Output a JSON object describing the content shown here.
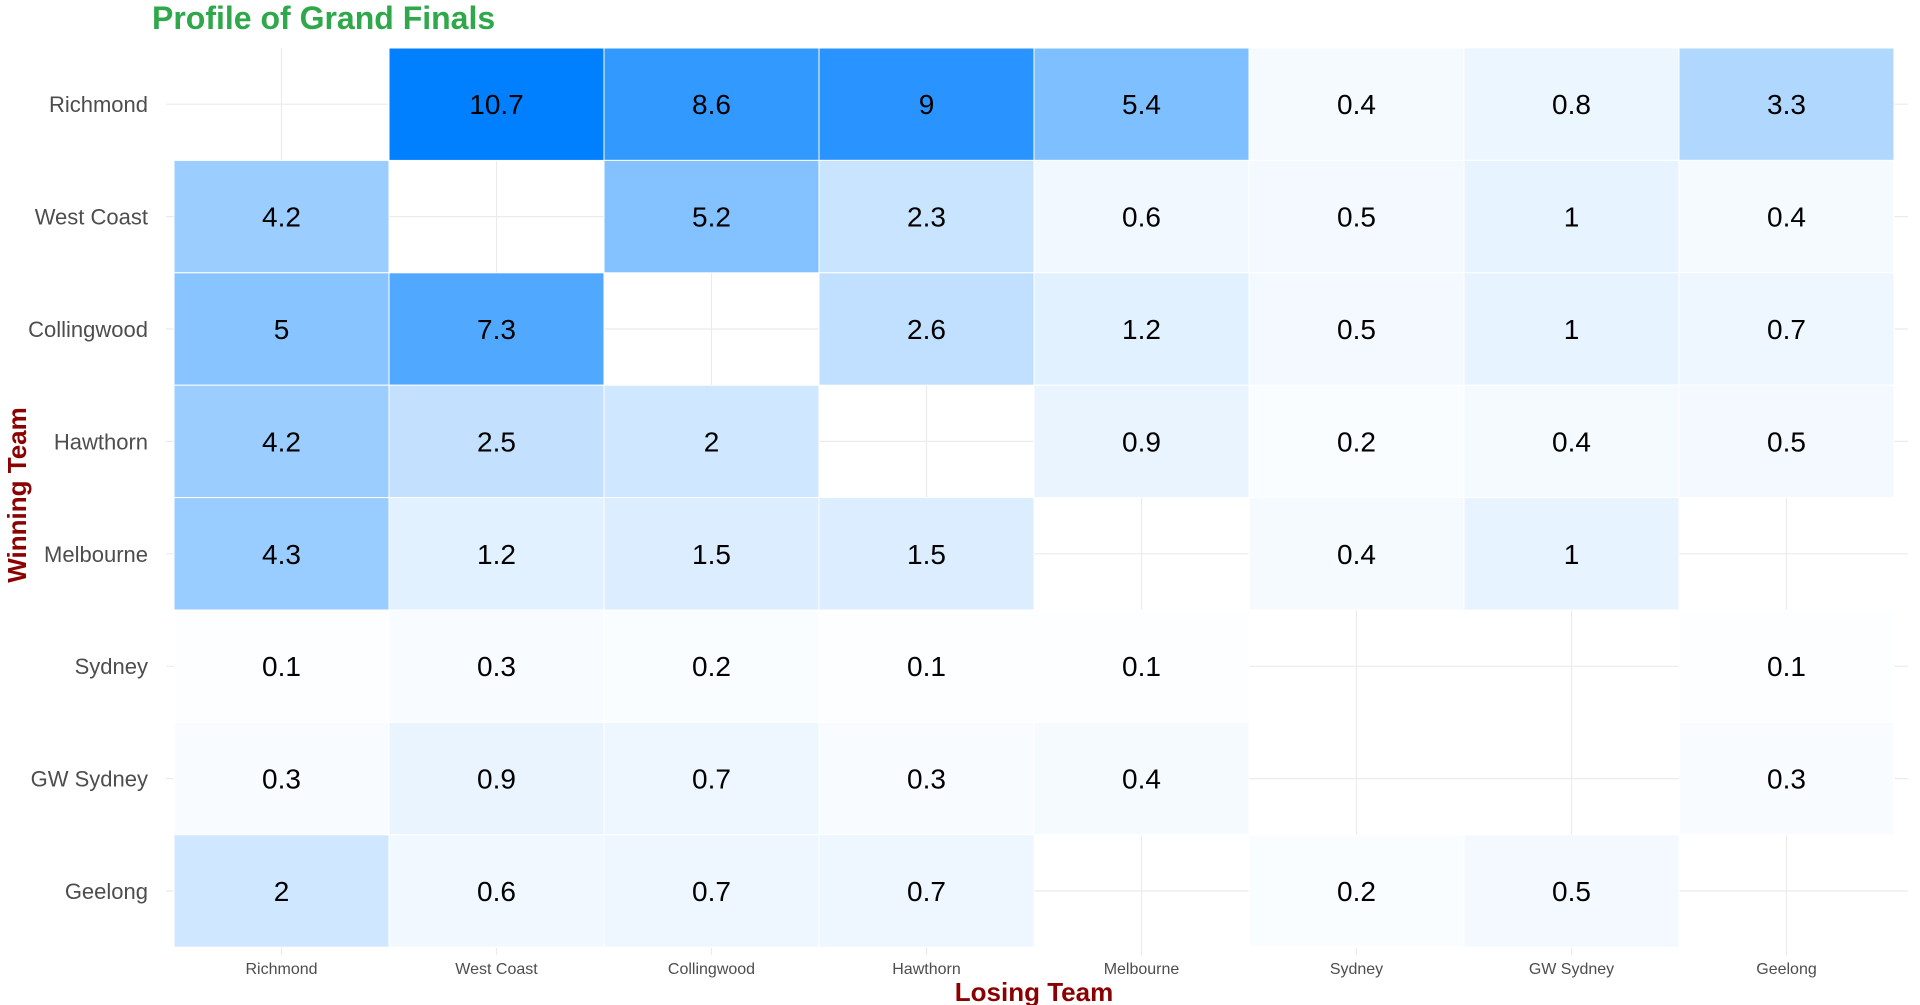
{
  "chart_data": {
    "type": "heatmap",
    "title": "Profile of Grand Finals",
    "xlabel": "Losing Team",
    "ylabel": "Winning Team",
    "x_categories": [
      "Richmond",
      "West Coast",
      "Collingwood",
      "Hawthorn",
      "Melbourne",
      "Sydney",
      "GW Sydney",
      "Geelong"
    ],
    "y_categories": [
      "Richmond",
      "West Coast",
      "Collingwood",
      "Hawthorn",
      "Melbourne",
      "Sydney",
      "GW Sydney",
      "Geelong"
    ],
    "values": [
      [
        null,
        10.7,
        8.6,
        9,
        5.4,
        0.4,
        0.8,
        3.3
      ],
      [
        4.2,
        null,
        5.2,
        2.3,
        0.6,
        0.5,
        1,
        0.4
      ],
      [
        5,
        7.3,
        null,
        2.6,
        1.2,
        0.5,
        1,
        0.7
      ],
      [
        4.2,
        2.5,
        2,
        null,
        0.9,
        0.2,
        0.4,
        0.5
      ],
      [
        4.3,
        1.2,
        1.5,
        1.5,
        null,
        0.4,
        1,
        null
      ],
      [
        0.1,
        0.3,
        0.2,
        0.1,
        0.1,
        null,
        null,
        0.1
      ],
      [
        0.3,
        0.9,
        0.7,
        0.3,
        0.4,
        null,
        null,
        0.3
      ],
      [
        2,
        0.6,
        0.7,
        0.7,
        null,
        0.2,
        0.5,
        null
      ]
    ],
    "value_range": [
      0,
      10.7
    ],
    "color_low": "#ffffff",
    "color_high": "#0080ff",
    "title_color": "#2ea84a",
    "axis_title_color": "#8b0000",
    "grid": true,
    "legend": "none"
  }
}
